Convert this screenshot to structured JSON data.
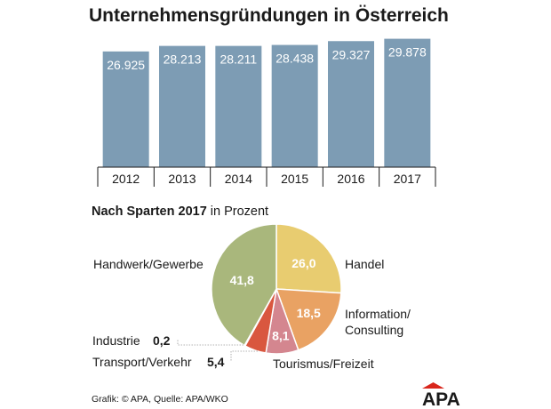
{
  "chart_data": [
    {
      "type": "bar",
      "title": "Unternehmensgründungen in Österreich",
      "categories": [
        "2012",
        "2013",
        "2014",
        "2015",
        "2016",
        "2017"
      ],
      "values": [
        26925,
        28213,
        28211,
        28438,
        29327,
        29878
      ],
      "value_labels": [
        "26.925",
        "28.213",
        "28.211",
        "28.438",
        "29.327",
        "29.878"
      ],
      "ylim": [
        0,
        30000
      ],
      "xlabel": "",
      "ylabel": "",
      "grid": false,
      "color": "#7d9cb4"
    },
    {
      "type": "pie",
      "title_bold": "Nach Sparten 2017",
      "title_rest": " in Prozent",
      "slices": [
        {
          "label": "Handel",
          "value": 26.0,
          "value_label": "26,0",
          "color": "#e8cc70"
        },
        {
          "label": "Information/",
          "label2": "Consulting",
          "value": 18.5,
          "value_label": "18,5",
          "color": "#e9a263"
        },
        {
          "label": "Tourismus/Freizeit",
          "value": 8.1,
          "value_label": "8,1",
          "color": "#d4868f"
        },
        {
          "label": "Transport/Verkehr",
          "value": 5.4,
          "value_label": "5,4",
          "color": "#d9573f"
        },
        {
          "label": "Industrie",
          "value": 0.2,
          "value_label": "0,2",
          "color": "#b04030"
        },
        {
          "label": "Handwerk/Gewerbe",
          "value": 41.8,
          "value_label": "41,8",
          "color": "#a9b77c"
        }
      ]
    }
  ],
  "footer": {
    "credit": "Grafik: © APA, Quelle: APA/WKO",
    "logo_text": "APA"
  }
}
